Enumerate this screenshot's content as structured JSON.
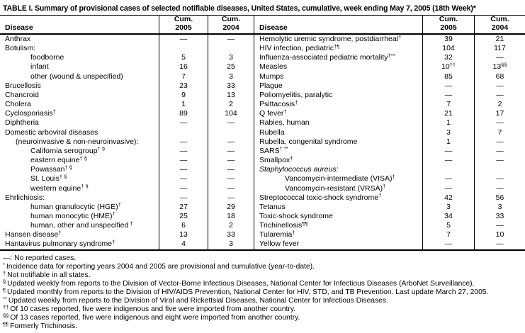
{
  "title": "TABLE I. Summary of provisional cases of selected notifiable diseases, United States, cumulative, week ending May 7, 2005 (18th Week)*",
  "columns": {
    "disease": "Disease",
    "cum": "Cum.",
    "y2005": "2005",
    "y2004": "2004"
  },
  "left_rows": [
    {
      "label": "Anthrax",
      "c2005": "—",
      "c2004": "—"
    },
    {
      "label": "Botulism:",
      "c2005": "",
      "c2004": ""
    },
    {
      "label": "foodborne",
      "indent": 2,
      "c2005": "5",
      "c2004": "3"
    },
    {
      "label": "infant",
      "indent": 2,
      "c2005": "16",
      "c2004": "25"
    },
    {
      "label": "other (wound & unspecified)",
      "indent": 2,
      "c2005": "7",
      "c2004": "3"
    },
    {
      "label": "Brucellosis",
      "c2005": "23",
      "c2004": "33"
    },
    {
      "label": "Chancroid",
      "c2005": "9",
      "c2004": "13"
    },
    {
      "label": "Cholera",
      "c2005": "1",
      "c2004": "2"
    },
    {
      "label": "Cyclosporiasis",
      "sup": "†",
      "c2005": "89",
      "c2004": "104"
    },
    {
      "label": "Diphtheria",
      "c2005": "—",
      "c2004": "—"
    },
    {
      "label": "Domestic arboviral diseases",
      "c2005": "",
      "c2004": ""
    },
    {
      "label": "(neuroinvasive & non-neuroinvasive):",
      "indent": 1,
      "c2005": "—",
      "c2004": "—"
    },
    {
      "label": "California serogroup",
      "sup": "† §",
      "indent": 2,
      "c2005": "—",
      "c2004": "—"
    },
    {
      "label": "eastern equine",
      "sup": "† §",
      "indent": 2,
      "c2005": "—",
      "c2004": "—"
    },
    {
      "label": "Powassan",
      "sup": "† §",
      "indent": 2,
      "c2005": "—",
      "c2004": "—"
    },
    {
      "label": "St. Louis",
      "sup": "† §",
      "indent": 2,
      "c2005": "—",
      "c2004": "—"
    },
    {
      "label": "western equine",
      "sup": "† §",
      "indent": 2,
      "c2005": "—",
      "c2004": "—"
    },
    {
      "label": "Ehrlichiosis:",
      "c2005": "—",
      "c2004": "—"
    },
    {
      "label": "human granulocytic (HGE)",
      "sup": "†",
      "indent": 2,
      "c2005": "27",
      "c2004": "29"
    },
    {
      "label": "human monocytic (HME)",
      "sup": "†",
      "indent": 2,
      "c2005": "25",
      "c2004": "18"
    },
    {
      "label": "human, other and unspecified",
      "sup": " †",
      "indent": 2,
      "c2005": "6",
      "c2004": "2"
    },
    {
      "label": "Hansen disease",
      "sup": "†",
      "c2005": "13",
      "c2004": "33"
    },
    {
      "label": "Hantavirus pulmonary syndrome",
      "sup": "†",
      "c2005": "4",
      "c2004": "3"
    }
  ],
  "right_rows": [
    {
      "label": "Hemolytic uremic syndrome, postdiarrheal",
      "sup": "†",
      "c2005": "39",
      "c2004": "21"
    },
    {
      "label": "HIV infection, pediatric",
      "sup": "†¶",
      "c2005": "104",
      "c2004": "117"
    },
    {
      "label": "Influenza-associated pediatric mortality",
      "sup": "†**",
      "c2005": "32",
      "c2004": "—"
    },
    {
      "label": "Measles",
      "c2005": "10",
      "c2005_sup": "††",
      "c2004": "13",
      "c2004_sup": "§§"
    },
    {
      "label": "Mumps",
      "c2005": "85",
      "c2004": "68"
    },
    {
      "label": "Plague",
      "c2005": "—",
      "c2004": "—"
    },
    {
      "label": "Poliomyelitis, paralytic",
      "c2005": "—",
      "c2004": "—"
    },
    {
      "label": "Psittacosis",
      "sup": "†",
      "c2005": "7",
      "c2004": "2"
    },
    {
      "label": "Q fever",
      "sup": "†",
      "c2005": "21",
      "c2004": "17"
    },
    {
      "label": "Rabies, human",
      "c2005": "1",
      "c2004": "—"
    },
    {
      "label": "Rubella",
      "c2005": "3",
      "c2004": "7"
    },
    {
      "label": "Rubella, congenital syndrome",
      "c2005": "1",
      "c2004": "—"
    },
    {
      "label": "SARS",
      "sup": "† **",
      "c2005": "—",
      "c2004": "—"
    },
    {
      "label": "Smallpox",
      "sup": "†",
      "c2005": "—",
      "c2004": "—"
    },
    {
      "label": "Staphylococcus aureus:",
      "italic": true,
      "c2005": "",
      "c2004": ""
    },
    {
      "label": "Vancomycin-intermediate (VISA)",
      "sup": "†",
      "indent": 2,
      "c2005": "—",
      "c2004": "—"
    },
    {
      "label": "Vancomycin-resistant (VRSA)",
      "sup": "†",
      "indent": 2,
      "c2005": "—",
      "c2004": "—"
    },
    {
      "label": "Streptococcal toxic-shock syndrome",
      "sup": "†",
      "c2005": "42",
      "c2004": "56"
    },
    {
      "label": "Tetanus",
      "c2005": "3",
      "c2004": "3"
    },
    {
      "label": "Toxic-shock syndrome",
      "c2005": "34",
      "c2004": "33"
    },
    {
      "label": "Trichinellosis",
      "sup": "¶¶",
      "c2005": "5",
      "c2004": "—"
    },
    {
      "label": "Tularemia",
      "sup": "†",
      "c2005": "7",
      "c2004": "10"
    },
    {
      "label": "Yellow fever",
      "c2005": "—",
      "c2004": "—"
    }
  ],
  "footnotes": [
    {
      "marker": "—:",
      "superscript": false,
      "text": "No reported cases."
    },
    {
      "marker": "*",
      "superscript": true,
      "text": "Incidence data for reporting years 2004 and 2005 are provisional and cumulative (year-to-date)."
    },
    {
      "marker": "†",
      "superscript": true,
      "text": "Not notifiable in all states."
    },
    {
      "marker": "§",
      "superscript": true,
      "text": "Updated weekly from reports to the Division of Vector-Borne Infectious Diseases, National Center for Infectious Diseases (ArboNet Surveillance)."
    },
    {
      "marker": "¶",
      "superscript": true,
      "text": "Updated monthly from reports to the Division of HIV/AIDS Prevention, National Center for HIV, STD, and TB Prevention. Last update March 27, 2005."
    },
    {
      "marker": "**",
      "superscript": true,
      "text": "Updated weekly from reports to the Division of Viral and Rickettsial Diseases, National Center for Infectious Diseases."
    },
    {
      "marker": "††",
      "superscript": true,
      "text": "Of 10 cases reported, five were indigenous and five were imported from another country."
    },
    {
      "marker": "§§",
      "superscript": true,
      "text": "Of 13 cases reported, five were indigenous and eight were imported from another country."
    },
    {
      "marker": "¶¶",
      "superscript": true,
      "text": "Formerly Trichinosis."
    }
  ]
}
